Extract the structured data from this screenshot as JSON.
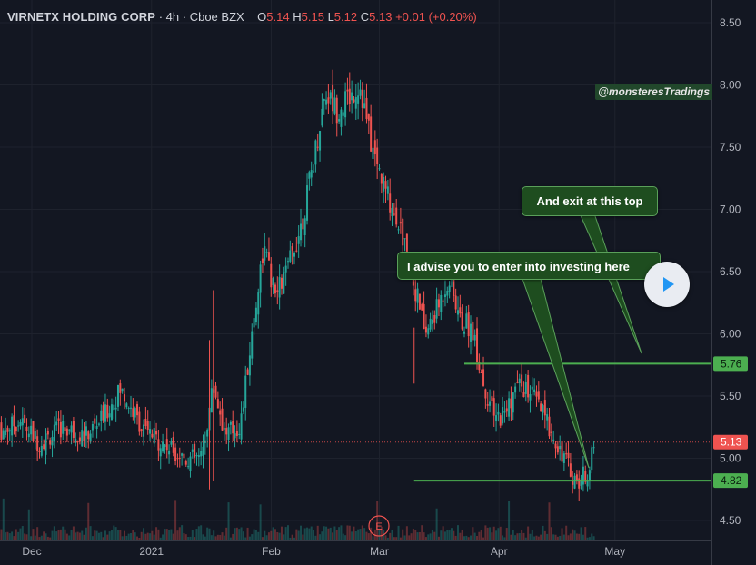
{
  "header": {
    "symbol_name": "VIRNETX HOLDING CORP",
    "interval": "4h",
    "exchange": "Cboe BZX",
    "o_label": "O",
    "o_value": "5.14",
    "h_label": "H",
    "h_value": "5.15",
    "l_label": "L",
    "l_value": "5.12",
    "c_label": "C",
    "c_value": "5.13",
    "change": "+0.01 (+0.20%)"
  },
  "watermark": "@monsteresTradings",
  "annotations": {
    "exit": "And exit at this top",
    "enter": "I advise you to enter into investing here"
  },
  "earnings_marker": "E",
  "colors": {
    "background": "#131722",
    "up": "#26a69a",
    "down": "#ef5350",
    "level_line": "#4caf50",
    "callout_bg": "#1e4d1f",
    "axis_text": "#b2b5be"
  },
  "icons": {
    "play": "play-icon"
  },
  "chart_data": {
    "type": "candlestick",
    "x_ticks": [
      "Dec",
      "2021",
      "Feb",
      "Mar",
      "Apr",
      "May"
    ],
    "y_ticks": [
      "8.50",
      "8.00",
      "7.50",
      "7.00",
      "6.50",
      "6.00",
      "5.50",
      "5.00",
      "4.50"
    ],
    "ylim": [
      4.37,
      8.62
    ],
    "price_labels": [
      {
        "label": "5.76",
        "value": 5.76,
        "kind": "level"
      },
      {
        "label": "5.13",
        "value": 5.13,
        "kind": "last"
      },
      {
        "label": "4.82",
        "value": 4.82,
        "kind": "level"
      }
    ],
    "levels": [
      {
        "value": 5.76,
        "from_date": "2021-03-23",
        "to_date": "2021-05-31"
      },
      {
        "value": 4.82,
        "from_date": "2021-03-10",
        "to_date": "2021-05-31"
      }
    ],
    "trend": [
      [
        "2020-11-22",
        5.2
      ],
      [
        "2020-11-28",
        5.3
      ],
      [
        "2020-12-03",
        5.12
      ],
      [
        "2020-12-09",
        5.25
      ],
      [
        "2020-12-15",
        5.18
      ],
      [
        "2020-12-20",
        5.35
      ],
      [
        "2020-12-24",
        5.55
      ],
      [
        "2020-12-30",
        5.22
      ],
      [
        "2021-01-05",
        5.1
      ],
      [
        "2021-01-10",
        5.0
      ],
      [
        "2021-01-14",
        5.0
      ],
      [
        "2021-01-17",
        5.6
      ],
      [
        "2021-01-20",
        5.2
      ],
      [
        "2021-01-24",
        5.25
      ],
      [
        "2021-01-27",
        6.0
      ],
      [
        "2021-01-30",
        6.7
      ],
      [
        "2021-02-02",
        6.3
      ],
      [
        "2021-02-05",
        6.5
      ],
      [
        "2021-02-09",
        6.9
      ],
      [
        "2021-02-12",
        7.4
      ],
      [
        "2021-02-15",
        7.95
      ],
      [
        "2021-02-18",
        7.8
      ],
      [
        "2021-02-21",
        7.9
      ],
      [
        "2021-02-24",
        8.0
      ],
      [
        "2021-02-27",
        7.5
      ],
      [
        "2021-03-02",
        7.2
      ],
      [
        "2021-03-06",
        6.9
      ],
      [
        "2021-03-10",
        6.4
      ],
      [
        "2021-03-13",
        6.0
      ],
      [
        "2021-03-16",
        6.2
      ],
      [
        "2021-03-19",
        6.45
      ],
      [
        "2021-03-22",
        6.1
      ],
      [
        "2021-03-25",
        6.05
      ],
      [
        "2021-03-28",
        5.6
      ],
      [
        "2021-03-31",
        5.3
      ],
      [
        "2021-04-03",
        5.4
      ],
      [
        "2021-04-06",
        5.6
      ],
      [
        "2021-04-10",
        5.5
      ],
      [
        "2021-04-14",
        5.25
      ],
      [
        "2021-04-18",
        5.0
      ],
      [
        "2021-04-21",
        4.8
      ],
      [
        "2021-04-24",
        4.9
      ],
      [
        "2021-04-26",
        5.13
      ]
    ],
    "crosshair": {
      "x": "2021-04-26",
      "y": 5.13
    }
  }
}
